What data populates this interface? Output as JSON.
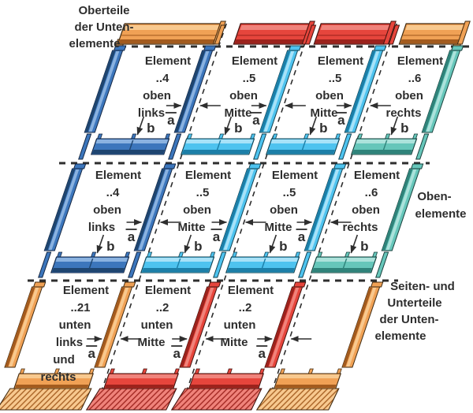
{
  "diagram": {
    "background": "#ffffff",
    "text_color": "#2e2e2e",
    "dash_color": "#2e2e2e",
    "labels": {
      "top_left": {
        "lines": [
          "Oberteile",
          "der Unten-",
          "elemente"
        ]
      },
      "right_top": {
        "lines": [
          "Oben-",
          "elemente"
        ]
      },
      "right_bottom": {
        "lines": [
          "Seiten- und",
          "Unterteile",
          "der Unten-",
          "elemente"
        ]
      }
    },
    "dimensions": {
      "a": "a",
      "b": "b"
    },
    "palette": {
      "orange": {
        "main": "#F0A155",
        "light": "#F8C98F",
        "dark": "#A35B1E",
        "outline": "#402B12"
      },
      "red": {
        "main": "#E6453C",
        "light": "#F0837B",
        "dark": "#9C221C",
        "outline": "#40120E"
      },
      "blue": {
        "main": "#3C76BC",
        "light": "#8AB2E0",
        "dark": "#1E4570",
        "outline": "#152743"
      },
      "lightblue": {
        "main": "#4EC3EF",
        "light": "#A8E2F8",
        "dark": "#1C7FA8",
        "outline": "#12404F"
      },
      "teal": {
        "main": "#66C6BA",
        "light": "#ACE2DB",
        "dark": "#2F837A",
        "outline": "#183F3B"
      }
    },
    "top_pieces": {
      "colors": [
        "orange",
        "red",
        "red",
        "orange"
      ]
    },
    "rows": [
      {
        "name": "oben-row-1",
        "rails": [
          "blue",
          "blue",
          "lightblue",
          "lightblue",
          "teal"
        ],
        "bars": [
          "blue",
          "lightblue",
          "lightblue",
          "teal"
        ],
        "cells": [
          {
            "lines": [
              "Element",
              "..4",
              "oben",
              "links"
            ]
          },
          {
            "lines": [
              "Element",
              "..5",
              "oben",
              "Mitte"
            ]
          },
          {
            "lines": [
              "Element",
              "..5",
              "oben",
              "Mitte"
            ]
          },
          {
            "lines": [
              "Element",
              "..6",
              "oben",
              "rechts"
            ]
          }
        ]
      },
      {
        "name": "oben-row-2",
        "rails": [
          "blue",
          "blue",
          "lightblue",
          "lightblue",
          "teal"
        ],
        "bars": [
          "blue",
          "lightblue",
          "lightblue",
          "teal"
        ],
        "cells": [
          {
            "lines": [
              "Element",
              "..4",
              "oben",
              "links"
            ]
          },
          {
            "lines": [
              "Element",
              "..5",
              "oben",
              "Mitte"
            ]
          },
          {
            "lines": [
              "Element",
              "..5",
              "oben",
              "Mitte"
            ]
          },
          {
            "lines": [
              "Element",
              "..6",
              "oben",
              "rechts"
            ]
          }
        ]
      },
      {
        "name": "unten-row",
        "rails": [
          "orange",
          "orange",
          "red",
          "red",
          "orange"
        ],
        "aprons": [
          "orange",
          "red",
          "red",
          "orange"
        ],
        "cells": [
          {
            "lines": [
              "Element",
              "..21",
              "unten",
              "links",
              "und",
              "rechts"
            ]
          },
          {
            "lines": [
              "Element",
              "..2",
              "unten",
              "Mitte"
            ]
          },
          {
            "lines": [
              "Element",
              "..2",
              "unten",
              "Mitte"
            ]
          },
          {
            "lines": []
          }
        ]
      }
    ]
  }
}
